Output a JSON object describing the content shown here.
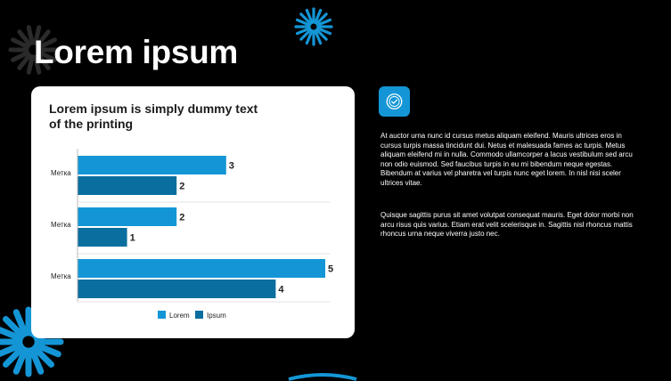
{
  "slide": {
    "title": "Lorem ipsum"
  },
  "icon_tile": {
    "icon": "badge-check-icon",
    "color": "#1496d6"
  },
  "text": {
    "paragraph1": "At auctor urna nunc id cursus metus aliquam eleifend. Mauris ultrices eros in cursus turpis massa tincidunt dui. Netus et malesuada fames ac turpis. Metus aliquam eleifend mi in nulla. Commodo ullamcorper a lacus vestibulum sed arcu non odio euismod. Sed faucibus turpis in eu mi bibendum neque egestas. Bibendum at varius vel pharetra vel turpis nunc eget lorem. In nisl nisi sceler ultrices vitae.",
    "paragraph2": "Quisque sagittis purus sit amet volutpat consequat mauris. Eget dolor morbi non arcu risus quis varius. Etiam erat velit scelerisque in. Sagittis nisl rhoncus mattis rhoncus urna neque viverra justo nec."
  },
  "colors": {
    "accent": "#1496d6",
    "series_dark": "#0a6f9e",
    "background": "#000000"
  },
  "chart_data": {
    "type": "bar",
    "orientation": "horizontal",
    "title": "Lorem ipsum is simply dummy text of the printing",
    "categories": [
      "Метка",
      "Метка",
      "Метка"
    ],
    "series": [
      {
        "name": "Lorem",
        "values": [
          3,
          2,
          5
        ],
        "color": "#1496d6"
      },
      {
        "name": "Ipsum",
        "values": [
          2,
          1,
          4
        ],
        "color": "#0a6f9e"
      }
    ],
    "xlim": [
      0,
      5
    ],
    "grid": true,
    "legend": "bottom"
  }
}
